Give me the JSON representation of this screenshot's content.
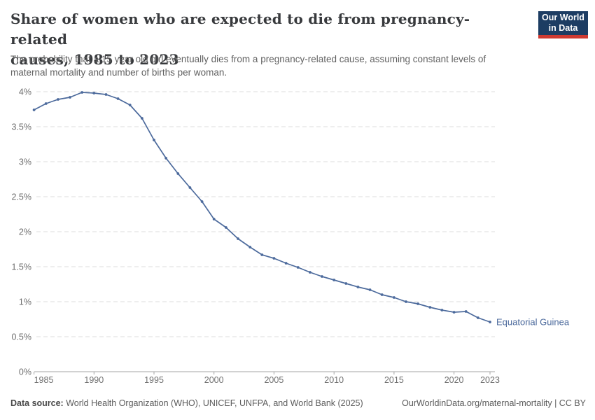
{
  "header": {
    "title_lines": [
      "Share of women who are expected to die from pregnancy-related",
      "causes, 1985 to 2023"
    ],
    "subtitle_lines": [
      "The probability that a 15 year old girl eventually dies from a pregnancy-related cause, assuming constant levels of",
      "maternal mortality and number of births per woman."
    ]
  },
  "logo": {
    "lines": [
      "Our World",
      "in Data"
    ],
    "bg_color": "#1d3d63",
    "bar_color": "#cf3a31"
  },
  "chart_data": {
    "type": "line",
    "title": "Share of women who are expected to die from pregnancy-related causes, 1985 to 2023",
    "xlabel": "",
    "ylabel": "",
    "xlim": [
      1985,
      2023
    ],
    "ylim": [
      0,
      4
    ],
    "grid": "horizontal-dashed",
    "legend_position": "end-of-line-label",
    "x": [
      1985,
      1986,
      1987,
      1988,
      1989,
      1990,
      1991,
      1992,
      1993,
      1994,
      1995,
      1996,
      1997,
      1998,
      1999,
      2000,
      2001,
      2002,
      2003,
      2004,
      2005,
      2006,
      2007,
      2008,
      2009,
      2010,
      2011,
      2012,
      2013,
      2014,
      2015,
      2016,
      2017,
      2018,
      2019,
      2020,
      2021,
      2022,
      2023
    ],
    "series": [
      {
        "name": "Equatorial Guinea",
        "color": "#4c6a9c",
        "values": [
          3.74,
          3.83,
          3.89,
          3.92,
          3.99,
          3.98,
          3.96,
          3.9,
          3.81,
          3.62,
          3.31,
          3.05,
          2.83,
          2.63,
          2.43,
          2.18,
          2.06,
          1.9,
          1.78,
          1.67,
          1.62,
          1.55,
          1.49,
          1.42,
          1.36,
          1.31,
          1.26,
          1.21,
          1.17,
          1.1,
          1.06,
          1.0,
          0.97,
          0.92,
          0.88,
          0.85,
          0.86,
          0.77,
          0.71
        ]
      }
    ],
    "y_ticks": [
      {
        "value": 0,
        "label": "0%"
      },
      {
        "value": 0.5,
        "label": "0.5%"
      },
      {
        "value": 1,
        "label": "1%"
      },
      {
        "value": 1.5,
        "label": "1.5%"
      },
      {
        "value": 2,
        "label": "2%"
      },
      {
        "value": 2.5,
        "label": "2.5%"
      },
      {
        "value": 3,
        "label": "3%"
      },
      {
        "value": 3.5,
        "label": "3.5%"
      },
      {
        "value": 4,
        "label": "4%"
      }
    ],
    "x_ticks": [
      1985,
      1990,
      1995,
      2000,
      2005,
      2010,
      2015,
      2020,
      2023
    ]
  },
  "footer": {
    "data_source_label": "Data source:",
    "data_source_text": " World Health Organization (WHO), UNICEF, UNFPA, and World Bank (2025)",
    "credit": "OurWorldinData.org/maternal-mortality | CC BY"
  }
}
